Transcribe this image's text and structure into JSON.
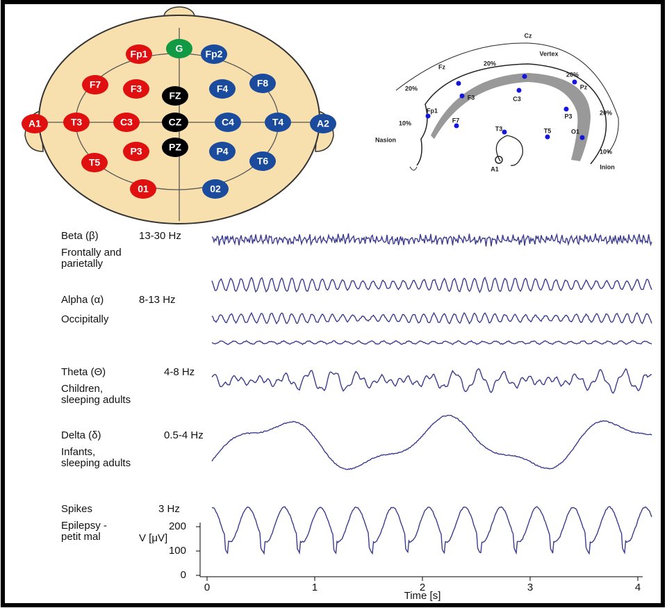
{
  "head_top": {
    "electrodes": [
      "Fp1",
      "G",
      "Fp2",
      "F7",
      "F3",
      "FZ",
      "F4",
      "F8",
      "A1",
      "T3",
      "C3",
      "CZ",
      "C4",
      "T4",
      "A2",
      "T5",
      "P3",
      "PZ",
      "P4",
      "T6",
      "01",
      "02"
    ]
  },
  "head_side": {
    "labels": [
      "Cz",
      "Vertex",
      "Fz",
      "20%",
      "20%",
      "20%",
      "Pz",
      "20%",
      "Fp1",
      "F3",
      "C3",
      "P3",
      "10%",
      "F7",
      "T3",
      "T5",
      "O1",
      "Nasion",
      "A1",
      "10%",
      "Inion"
    ]
  },
  "rhythms": [
    {
      "name": "Beta (β)",
      "freq": "13-30 Hz",
      "note": [
        "Frontally and",
        "parietally"
      ]
    },
    {
      "name": "Alpha (α)",
      "freq": "8-13 Hz",
      "note": [
        "Occipitally"
      ]
    },
    {
      "name": "Theta (Θ)",
      "freq": "4-8 Hz",
      "note": [
        "Children,",
        "sleeping adults"
      ]
    },
    {
      "name": "Delta (δ)",
      "freq": "0.5-4 Hz",
      "note": [
        "Infants,",
        "sleeping adults"
      ]
    },
    {
      "name": "Spikes",
      "freq": "3 Hz",
      "note": [
        "Epilepsy -",
        "petit mal"
      ]
    }
  ],
  "axis": {
    "y_label": "V [μV]",
    "yticks": [
      0,
      100,
      200
    ],
    "x_label": "Time [s]",
    "xticks": [
      0,
      1,
      2,
      3,
      4
    ]
  }
}
